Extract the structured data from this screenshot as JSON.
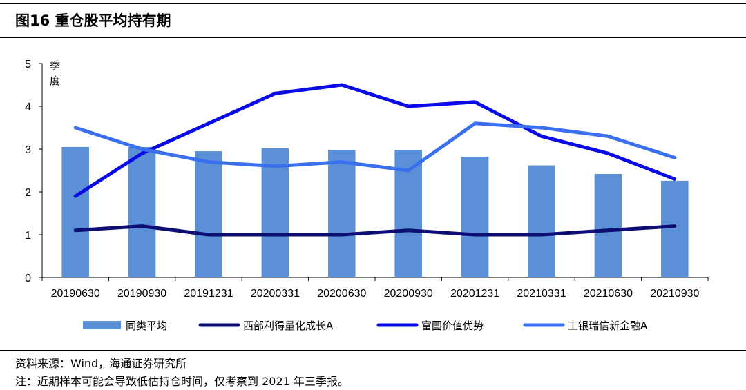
{
  "header": {
    "title": "图16 重仓股平均持有期"
  },
  "footer": {
    "source": "资料来源：Wind，海通证券研究所",
    "note": "注：近期样本可能会导致低估持仓时间，仅考察到 2021 年三季报。"
  },
  "chart_data": {
    "type": "bar",
    "title": "",
    "ylabel": "季度",
    "ylim": [
      0,
      5
    ],
    "yticks": [
      0,
      1,
      2,
      3,
      4,
      5
    ],
    "grid": false,
    "legend_position": "bottom",
    "categories": [
      "20190630",
      "20190930",
      "20191231",
      "20200331",
      "20200630",
      "20200930",
      "20201231",
      "20210331",
      "20210630",
      "20210930"
    ],
    "series": [
      {
        "name": "同类平均",
        "kind": "bar",
        "color": "#5b8fd6",
        "values": [
          3.05,
          3.05,
          2.95,
          3.02,
          2.98,
          2.98,
          2.82,
          2.62,
          2.42,
          2.26
        ]
      },
      {
        "name": "西部利得量化成长A",
        "kind": "line",
        "color": "#0d0d73",
        "values": [
          1.1,
          1.2,
          1.0,
          1.0,
          1.0,
          1.1,
          1.0,
          1.0,
          1.1,
          1.2
        ]
      },
      {
        "name": "富国价值优势",
        "kind": "line",
        "color": "#0a0ae6",
        "values": [
          1.9,
          2.9,
          3.6,
          4.3,
          4.5,
          4.0,
          4.1,
          3.3,
          2.9,
          2.3
        ]
      },
      {
        "name": "工银瑞信新金融A",
        "kind": "line",
        "color": "#3a70f0",
        "values": [
          3.5,
          3.0,
          2.7,
          2.6,
          2.7,
          2.5,
          3.6,
          3.5,
          3.3,
          2.8
        ]
      }
    ]
  }
}
